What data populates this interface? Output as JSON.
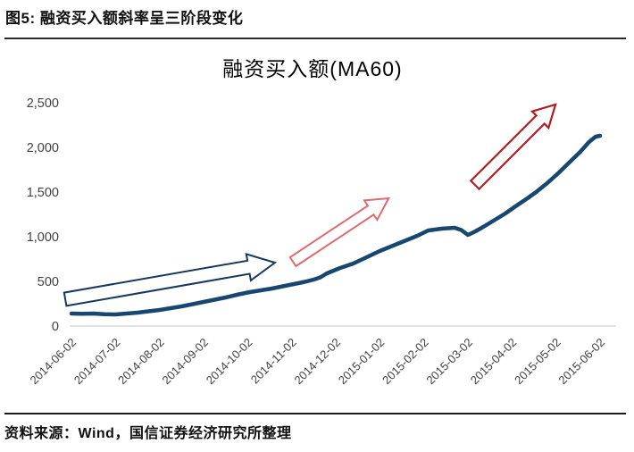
{
  "header": {
    "figure_label": "图5: 融资买入额斜率呈三阶段变化"
  },
  "chart_data": {
    "type": "line",
    "title": "融资买入额(MA60)",
    "xlabel": "",
    "ylabel": "",
    "x_unit": "months since 2014-06-02",
    "x_ticks": [
      "2014-06-02",
      "2014-07-02",
      "2014-08-02",
      "2014-09-02",
      "2014-10-02",
      "2014-11-02",
      "2014-12-02",
      "2015-01-02",
      "2015-02-02",
      "2015-03-02",
      "2015-04-02",
      "2015-05-02",
      "2015-06-02"
    ],
    "y_ticks": [
      "0",
      "500",
      "1,000",
      "1,500",
      "2,000",
      "2,500"
    ],
    "y_tick_values": [
      0,
      500,
      1000,
      1500,
      2000,
      2500
    ],
    "ylim": [
      0,
      2500
    ],
    "grid": "baseline-only",
    "legend": "none",
    "axis_color": "#d9d9d9",
    "tick_label_color": "#404040",
    "series": [
      {
        "name": "融资买入额(MA60)",
        "color": "#17466F",
        "points": [
          [
            0,
            140
          ],
          [
            0.25,
            138
          ],
          [
            0.5,
            140
          ],
          [
            0.75,
            133
          ],
          [
            1.0,
            130
          ],
          [
            1.25,
            140
          ],
          [
            1.5,
            150
          ],
          [
            1.75,
            165
          ],
          [
            2.0,
            180
          ],
          [
            2.25,
            200
          ],
          [
            2.5,
            220
          ],
          [
            2.75,
            245
          ],
          [
            3.0,
            270
          ],
          [
            3.25,
            295
          ],
          [
            3.5,
            320
          ],
          [
            3.8,
            355
          ],
          [
            4.05,
            380
          ],
          [
            4.3,
            400
          ],
          [
            4.55,
            420
          ],
          [
            4.8,
            445
          ],
          [
            5.05,
            470
          ],
          [
            5.3,
            495
          ],
          [
            5.5,
            520
          ],
          [
            5.65,
            545
          ],
          [
            5.8,
            590
          ],
          [
            6.1,
            650
          ],
          [
            6.4,
            700
          ],
          [
            6.7,
            770
          ],
          [
            7.0,
            840
          ],
          [
            7.3,
            900
          ],
          [
            7.6,
            960
          ],
          [
            7.85,
            1010
          ],
          [
            8.1,
            1070
          ],
          [
            8.4,
            1090
          ],
          [
            8.7,
            1100
          ],
          [
            8.85,
            1075
          ],
          [
            9.0,
            1020
          ],
          [
            9.15,
            1055
          ],
          [
            9.35,
            1110
          ],
          [
            9.55,
            1170
          ],
          [
            9.85,
            1260
          ],
          [
            10.05,
            1330
          ],
          [
            10.35,
            1430
          ],
          [
            10.55,
            1500
          ],
          [
            10.8,
            1600
          ],
          [
            11.05,
            1710
          ],
          [
            11.3,
            1830
          ],
          [
            11.55,
            1950
          ],
          [
            11.75,
            2060
          ],
          [
            11.9,
            2120
          ],
          [
            12.0,
            2130
          ]
        ]
      }
    ],
    "annotations": [
      {
        "type": "arrow",
        "name": "stage-1-arrow",
        "color": "#17375E",
        "from": [
          -0.14,
          300
        ],
        "to": [
          4.62,
          710
        ],
        "shaft_half_w": 7.5,
        "head_len": 30,
        "head_half_w": 15,
        "stroke_w": 2
      },
      {
        "type": "arrow",
        "name": "stage-2-arrow",
        "color": "#DD6B70",
        "from": [
          5.03,
          720
        ],
        "to": [
          7.2,
          1430
        ],
        "shaft_half_w": 6,
        "head_len": 24,
        "head_half_w": 13,
        "stroke_w": 2
      },
      {
        "type": "arrow",
        "name": "stage-3-arrow",
        "color": "#B01E24",
        "from": [
          9.16,
          1580
        ],
        "to": [
          10.99,
          2480
        ],
        "shaft_half_w": 6.5,
        "head_len": 24,
        "head_half_w": 13,
        "stroke_w": 2.2
      }
    ]
  },
  "source": {
    "text": "资料来源：Wind，国信证券经济研究所整理"
  }
}
